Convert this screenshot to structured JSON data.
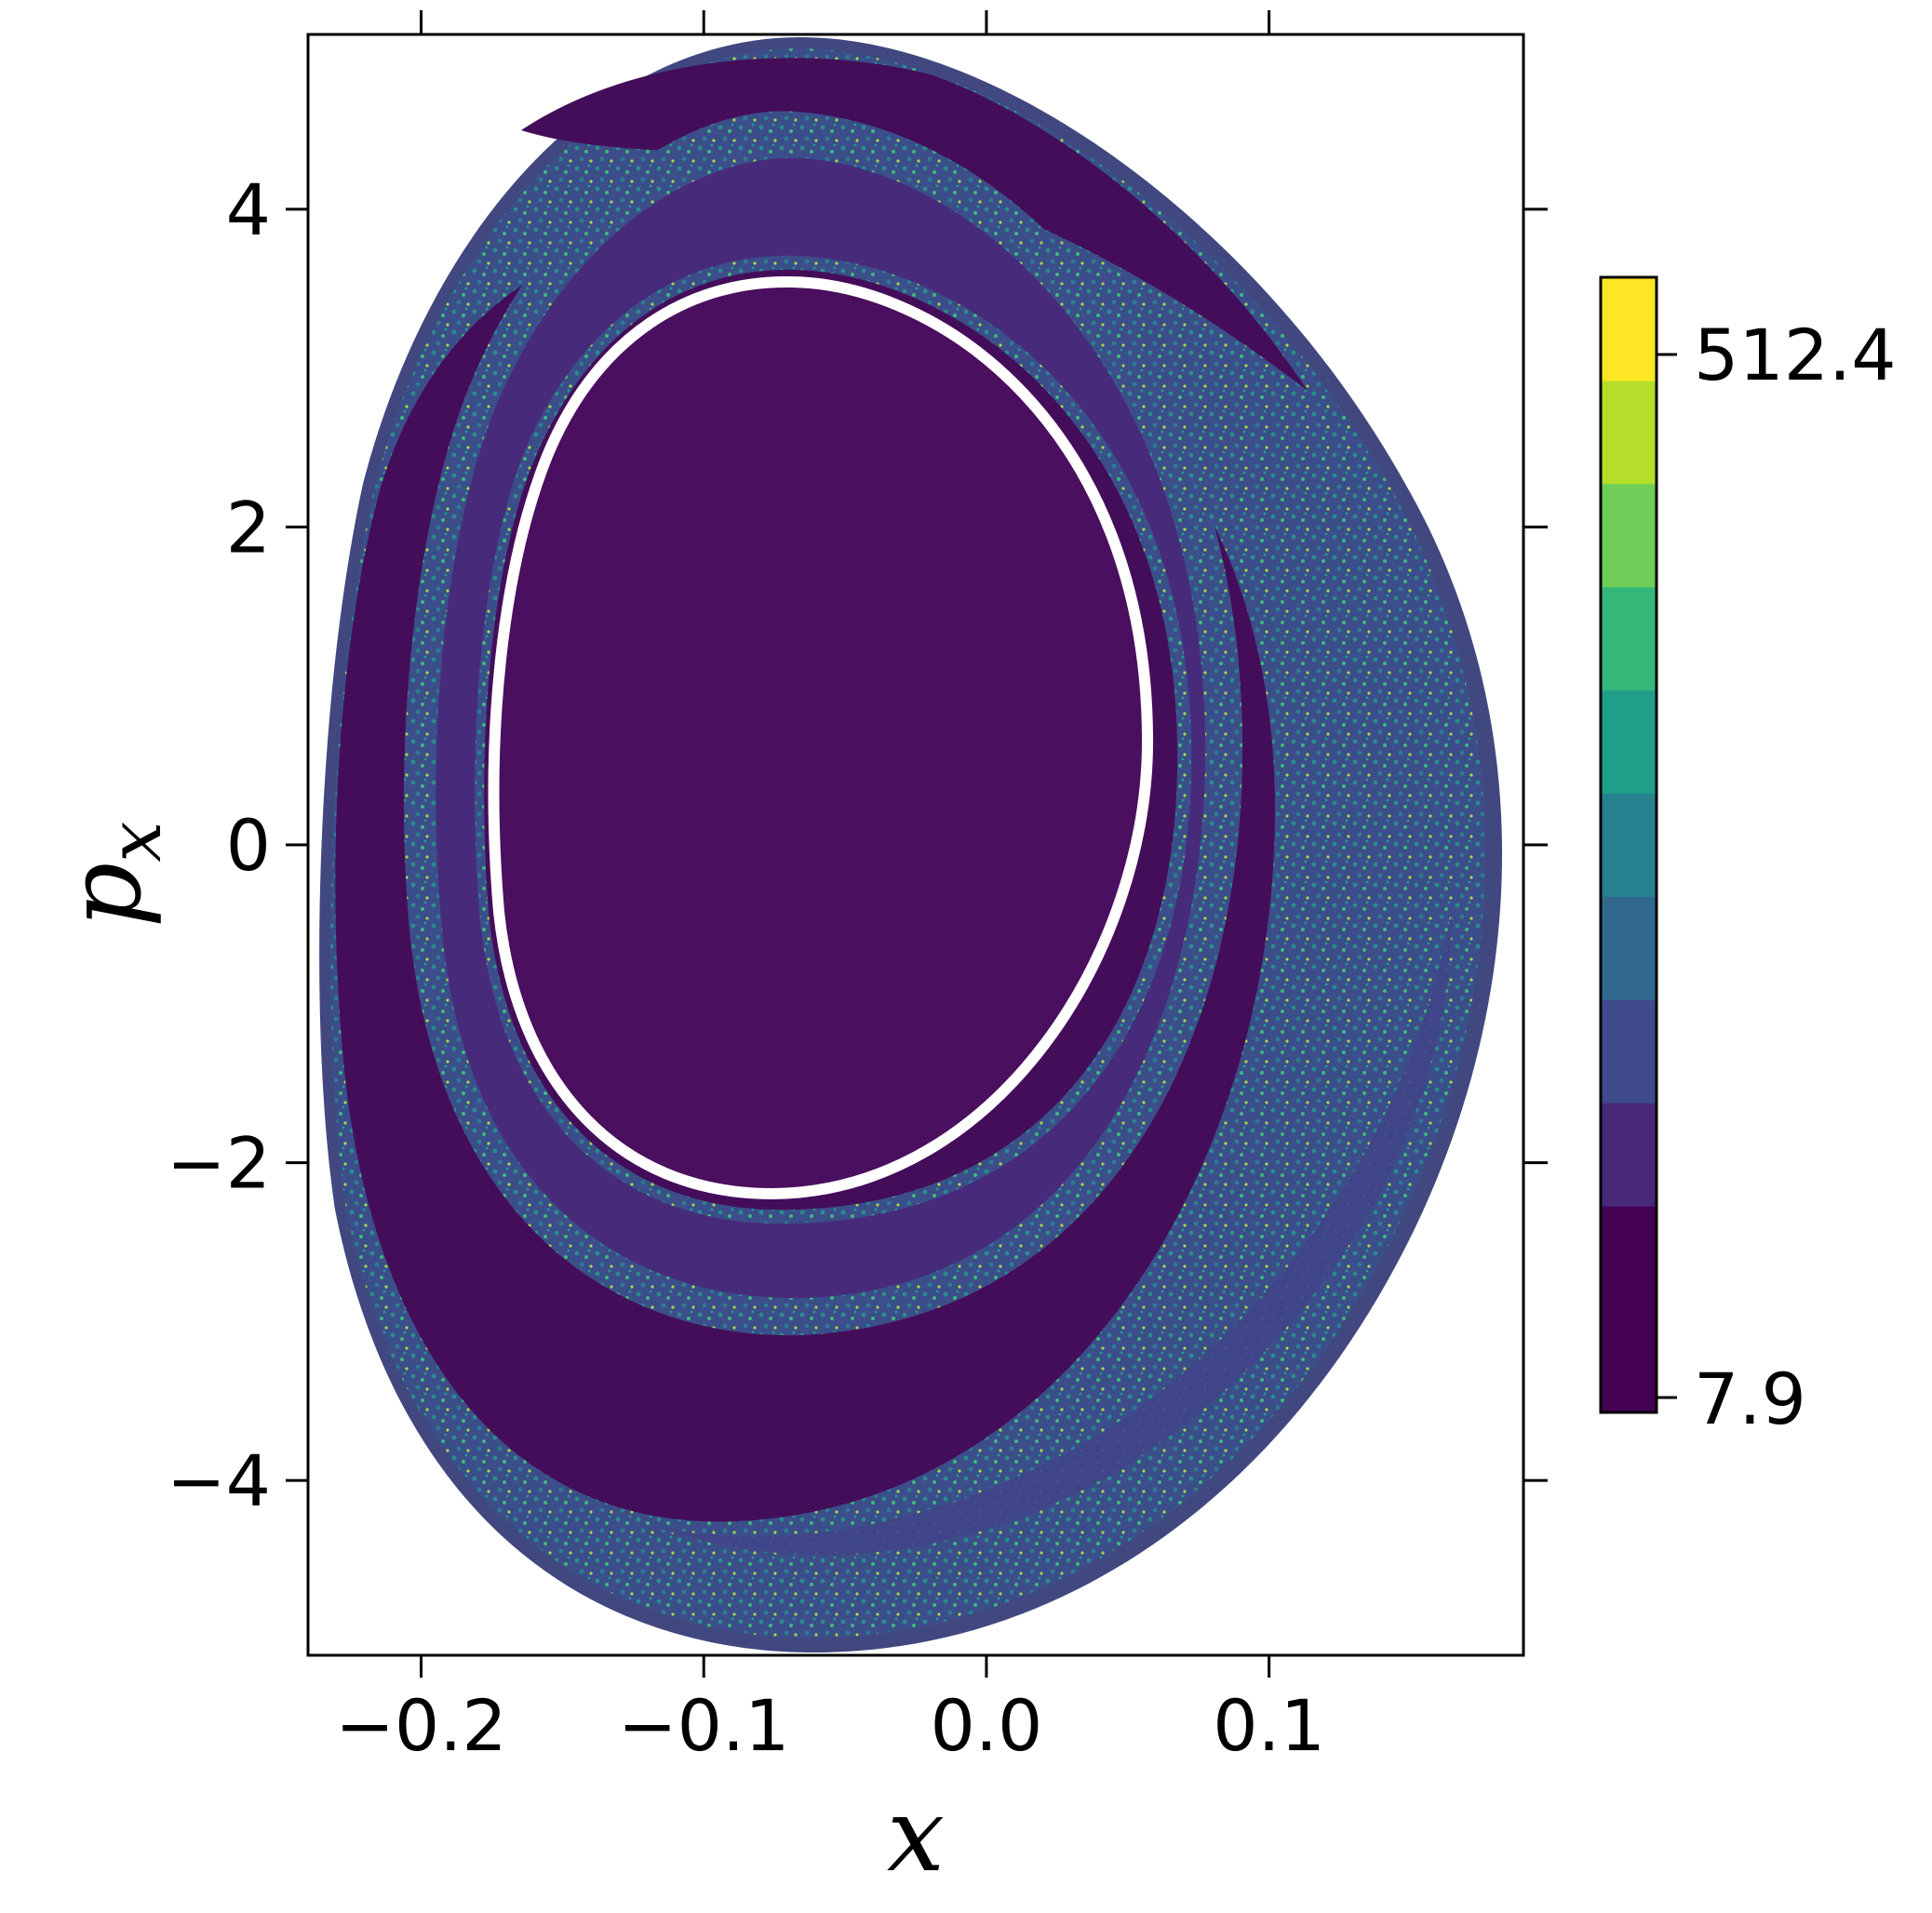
{
  "chart_data": {
    "type": "heatmap",
    "title": "",
    "xlabel": "x",
    "ylabel": "p",
    "ylabel_subscript": "x",
    "xlim": [
      -0.24,
      0.19
    ],
    "ylim": [
      -5.1,
      5.1
    ],
    "x_ticks": [
      {
        "value": -0.2,
        "label": "−0.2"
      },
      {
        "value": -0.1,
        "label": "−0.1"
      },
      {
        "value": 0.0,
        "label": "0.0"
      },
      {
        "value": 0.1,
        "label": "0.1"
      }
    ],
    "y_ticks": [
      {
        "value": 4,
        "label": "4"
      },
      {
        "value": 2,
        "label": "2"
      },
      {
        "value": 0,
        "label": "0"
      },
      {
        "value": -2,
        "label": "−2"
      },
      {
        "value": -4,
        "label": "−4"
      }
    ],
    "colorbar": {
      "min": 7.9,
      "max": 512.4,
      "min_label": "7.9",
      "max_label": "512.4",
      "levels": 11,
      "colormap": "viridis",
      "colors": [
        "#440154",
        "#482878",
        "#3e4a89",
        "#31688e",
        "#26828e",
        "#1f9e89",
        "#35b779",
        "#6ece58",
        "#b5de2b",
        "#fde725"
      ]
    },
    "regions": {
      "outer_boundary": {
        "x_min": -0.235,
        "x_max": 0.188,
        "p_min": -5.05,
        "p_max": 5.05
      },
      "inner_white_curve": {
        "x_min": -0.174,
        "x_max": 0.058,
        "p_min": -2.22,
        "p_max": 3.5
      },
      "background_level": 7.9,
      "chaotic_band_level": "mixed"
    },
    "grid": false,
    "legend": "none"
  }
}
